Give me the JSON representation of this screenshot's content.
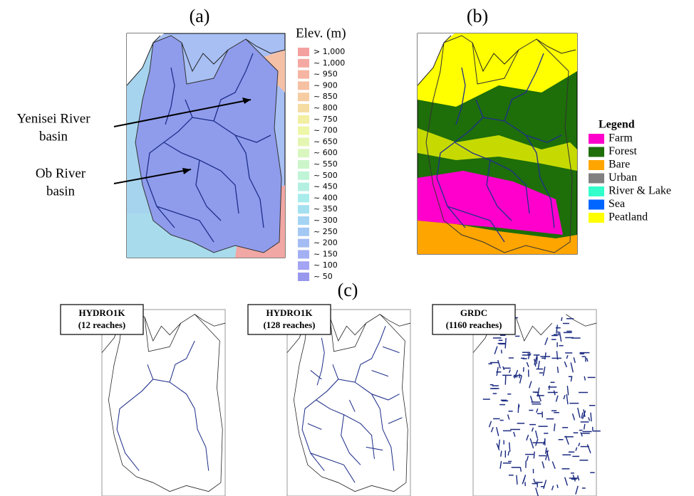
{
  "labels": {
    "a": "(a)",
    "b": "(b)",
    "c": "(c)"
  },
  "elevation_legend": {
    "title": "Elev. (m)",
    "items": [
      {
        "label": "> 1,000",
        "color": "#f5a0a0"
      },
      {
        "label": "~ 1,000",
        "color": "#f5a8a2"
      },
      {
        "label": "~ 950",
        "color": "#f6b4a2"
      },
      {
        "label": "~ 900",
        "color": "#f6c0a2"
      },
      {
        "label": "~ 850",
        "color": "#f6cca2"
      },
      {
        "label": "~ 800",
        "color": "#f5dca2"
      },
      {
        "label": "~ 750",
        "color": "#f2eea2"
      },
      {
        "label": "~ 700",
        "color": "#eef6a8"
      },
      {
        "label": "~ 650",
        "color": "#e4f6b2"
      },
      {
        "label": "~ 600",
        "color": "#d8f6be"
      },
      {
        "label": "~ 550",
        "color": "#ccf6ca"
      },
      {
        "label": "~ 500",
        "color": "#c0f4d6"
      },
      {
        "label": "~ 450",
        "color": "#b4f0e2"
      },
      {
        "label": "~ 400",
        "color": "#a8ecec"
      },
      {
        "label": "~ 350",
        "color": "#a4e0f0"
      },
      {
        "label": "~ 300",
        "color": "#a4d4f4"
      },
      {
        "label": "~ 250",
        "color": "#a4c8f4"
      },
      {
        "label": "~ 200",
        "color": "#a4bcf4"
      },
      {
        "label": "~ 150",
        "color": "#a4b0f4"
      },
      {
        "label": "~ 100",
        "color": "#a4a4f4"
      },
      {
        "label": "~ 50",
        "color": "#9898ee"
      }
    ]
  },
  "annotations": [
    {
      "lines": [
        "Yenisei River",
        "basin"
      ]
    },
    {
      "lines": [
        "Ob River",
        "basin"
      ]
    }
  ],
  "landcover_legend": {
    "title": "Legend",
    "items": [
      {
        "label": "Farm",
        "color": "#ff00cc"
      },
      {
        "label": "Forest",
        "color": "#1e6e0a"
      },
      {
        "label": "Bare",
        "color": "#ffa500"
      },
      {
        "label": "Urban",
        "color": "#808080"
      },
      {
        "label": "River & Lake",
        "color": "#33ffcc"
      },
      {
        "label": "Sea",
        "color": "#0066ff"
      },
      {
        "label": "Peatland",
        "color": "#ffff00"
      }
    ]
  },
  "networks": [
    {
      "source": "HYDRO1K",
      "reaches": "(12 reaches)"
    },
    {
      "source": "HYDRO1K",
      "reaches": "(128 reaches)"
    },
    {
      "source": "GRDC",
      "reaches": "(1160 reaches)"
    }
  ]
}
